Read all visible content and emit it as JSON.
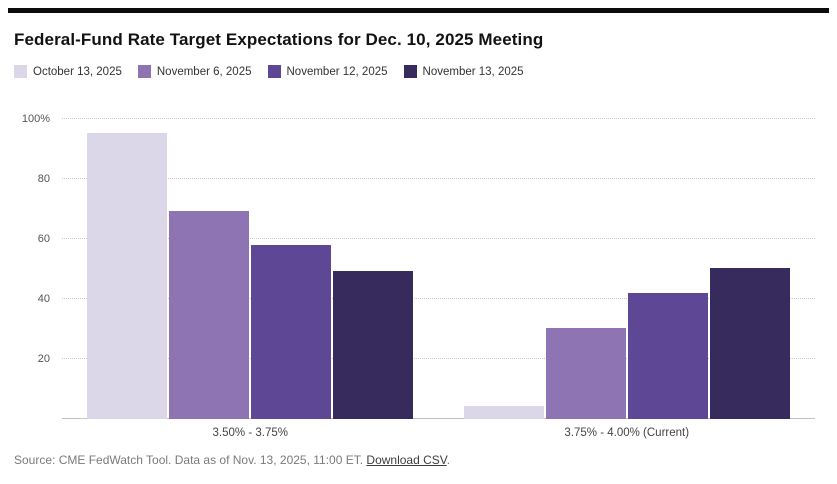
{
  "page": {
    "title": "Federal-Fund Rate Target Expectations for Dec. 10, 2025 Meeting"
  },
  "source": {
    "prefix": "Source: CME FedWatch Tool. Data as of Nov. 13, 2025, 11:00 ET. ",
    "link": "Download CSV",
    "suffix": "."
  },
  "chart_data": {
    "type": "bar",
    "title": "Federal-Fund Rate Target Expectations for Dec. 10, 2025 Meeting",
    "categories": [
      "3.50% - 3.75%",
      "3.75% - 4.00% (Current)"
    ],
    "series": [
      {
        "name": "October 13, 2025",
        "color": "#dcd7e8",
        "values": [
          95.5,
          4.5
        ]
      },
      {
        "name": "November 6, 2025",
        "color": "#8e74b2",
        "values": [
          69.5,
          30.5
        ]
      },
      {
        "name": "November 12, 2025",
        "color": "#5e4794",
        "values": [
          58,
          42
        ]
      },
      {
        "name": "November 13, 2025",
        "color": "#372a5c",
        "values": [
          49.5,
          50.5
        ]
      }
    ],
    "xlabel": "",
    "ylabel": "",
    "ylim": [
      0,
      100
    ],
    "yticks": [
      20,
      40,
      60,
      80,
      100
    ],
    "ytick_labels": [
      "20",
      "40",
      "60",
      "80",
      "100%"
    ],
    "grid": true,
    "legend_position": "top"
  }
}
